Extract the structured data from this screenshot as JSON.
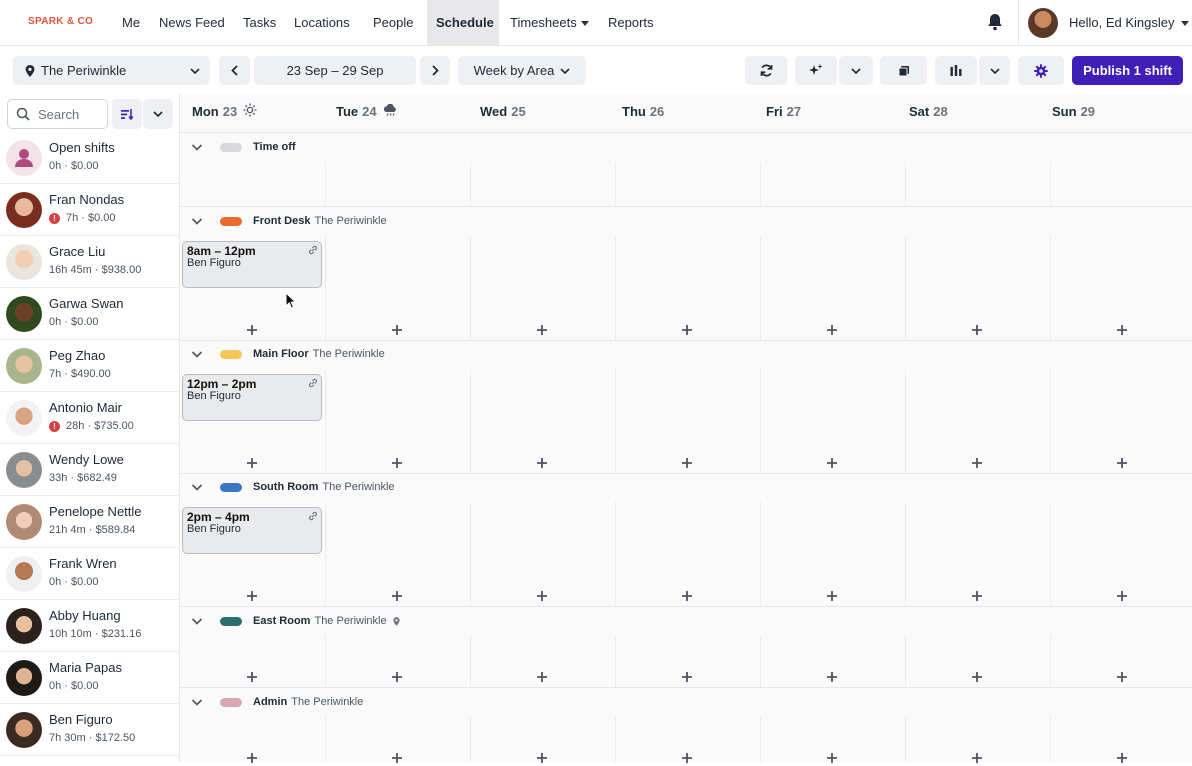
{
  "brand": "SPARK & CO",
  "nav": {
    "items": [
      "Me",
      "News Feed",
      "Tasks",
      "Locations",
      "People",
      "Schedule",
      "Timesheets",
      "Reports"
    ],
    "active": "Schedule",
    "greeting": "Hello, Ed Kingsley"
  },
  "toolbar": {
    "location": "The Periwinkle",
    "date_range": "23 Sep – 29 Sep",
    "view": "Week by Area",
    "publish_label": "Publish 1 shift"
  },
  "sidebar": {
    "search_placeholder": "Search",
    "people": [
      {
        "name": "Open shifts",
        "stats": "0h · $0.00",
        "warn": false
      },
      {
        "name": "Fran Nondas",
        "stats": "7h · $0.00",
        "warn": true
      },
      {
        "name": "Grace Liu",
        "stats": "16h 45m · $938.00",
        "warn": false
      },
      {
        "name": "Garwa Swan",
        "stats": "0h · $0.00",
        "warn": false
      },
      {
        "name": "Peg Zhao",
        "stats": "7h · $490.00",
        "warn": false
      },
      {
        "name": "Antonio Mair",
        "stats": "28h · $735.00",
        "warn": true
      },
      {
        "name": "Wendy Lowe",
        "stats": "33h · $682.49",
        "warn": false
      },
      {
        "name": "Penelope Nettle",
        "stats": "21h 4m · $589.84",
        "warn": false
      },
      {
        "name": "Frank Wren",
        "stats": "0h · $0.00",
        "warn": false
      },
      {
        "name": "Abby Huang",
        "stats": "10h 10m · $231.16",
        "warn": false
      },
      {
        "name": "Maria Papas",
        "stats": "0h · $0.00",
        "warn": false
      },
      {
        "name": "Ben Figuro",
        "stats": "7h 30m · $172.50",
        "warn": false
      }
    ]
  },
  "days": [
    {
      "name": "Mon",
      "date": "23",
      "weather": "sun-icon"
    },
    {
      "name": "Tue",
      "date": "24",
      "weather": "cloud-rain-icon"
    },
    {
      "name": "Wed",
      "date": "25"
    },
    {
      "name": "Thu",
      "date": "26"
    },
    {
      "name": "Fri",
      "date": "27"
    },
    {
      "name": "Sat",
      "date": "28"
    },
    {
      "name": "Sun",
      "date": "29"
    }
  ],
  "areas": [
    {
      "name": "Time off",
      "location": "",
      "color": "#d9d9dc"
    },
    {
      "name": "Front Desk",
      "location": "The Periwinkle",
      "color": "#e86c2c"
    },
    {
      "name": "Main Floor",
      "location": "The Periwinkle",
      "color": "#f6c65b"
    },
    {
      "name": "South Room",
      "location": "The Periwinkle",
      "color": "#3b76c4"
    },
    {
      "name": "East Room",
      "location": "The Periwinkle",
      "color": "#2f6e6e"
    },
    {
      "name": "Admin",
      "location": "The Periwinkle",
      "color": "#d9a7b3"
    }
  ],
  "shifts": [
    {
      "area": "Front Desk",
      "day": "Mon",
      "time": "8am – 12pm",
      "employee": "Ben Figuro"
    },
    {
      "area": "Main Floor",
      "day": "Mon",
      "time": "12pm – 2pm",
      "employee": "Ben Figuro"
    },
    {
      "area": "South Room",
      "day": "Mon",
      "time": "2pm – 4pm",
      "employee": "Ben Figuro"
    }
  ],
  "colors": {
    "accent": "#3f1fb8",
    "brand": "#e0523a",
    "warning": "#d14343"
  }
}
